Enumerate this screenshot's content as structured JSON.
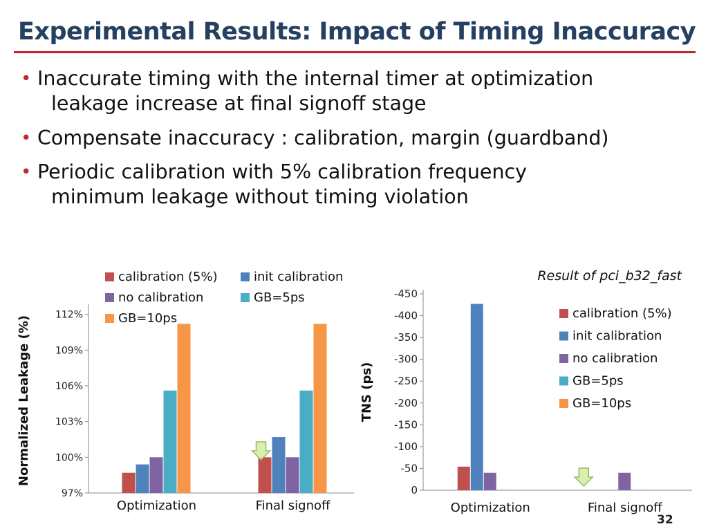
{
  "slide": {
    "title": "Experimental Results: Impact of Timing Inaccuracy",
    "bullets": [
      {
        "line1": "Inaccurate timing with the internal timer at optimization",
        "line2": "leakage increase at final signoff stage"
      },
      {
        "line1": "Compensate inaccuracy : calibration, margin (guardband)",
        "line2": ""
      },
      {
        "line1": "Periodic calibration with 5% calibration frequency",
        "line2": "minimum leakage without timing violation"
      }
    ],
    "page_number": "32"
  },
  "chart_data": [
    {
      "type": "bar",
      "title": "",
      "xlabel": "",
      "ylabel": "Normalized Leakage (%)",
      "categories": [
        "Optimization",
        "Final signoff"
      ],
      "ylim": [
        97,
        112.5
      ],
      "yticks": [
        "97%",
        "100%",
        "103%",
        "106%",
        "109%",
        "112%"
      ],
      "ytick_values": [
        97,
        100,
        103,
        106,
        109,
        112
      ],
      "legend_position": "top",
      "grid": false,
      "series": [
        {
          "name": "calibration (5%)",
          "color": "#c0504d",
          "values": [
            98.7,
            100.0
          ]
        },
        {
          "name": "init calibration",
          "color": "#4f81bd",
          "values": [
            99.4,
            101.7
          ]
        },
        {
          "name": "no calibration",
          "color": "#8064a2",
          "values": [
            100.0,
            100.0
          ]
        },
        {
          "name": "GB=5ps",
          "color": "#4bacc6",
          "values": [
            105.6,
            105.6
          ]
        },
        {
          "name": "GB=10ps",
          "color": "#f79646",
          "values": [
            111.2,
            111.2
          ]
        }
      ],
      "annotation_arrow_category": "Final signoff"
    },
    {
      "type": "bar",
      "title": "Result of pci_b32_fast",
      "xlabel": "",
      "ylabel": "TNS (ps)",
      "categories": [
        "Optimization",
        "Final signoff"
      ],
      "ylim": [
        0,
        -450
      ],
      "yticks": [
        "0",
        "-50",
        "-100",
        "-150",
        "-200",
        "-250",
        "-300",
        "-350",
        "-400",
        "-450"
      ],
      "ytick_values": [
        0,
        -50,
        -100,
        -150,
        -200,
        -250,
        -300,
        -350,
        -400,
        -450
      ],
      "legend_position": "right",
      "grid": false,
      "series": [
        {
          "name": "calibration (5%)",
          "color": "#c0504d",
          "values": [
            -54,
            0
          ]
        },
        {
          "name": "init calibration",
          "color": "#4f81bd",
          "values": [
            -427,
            0
          ]
        },
        {
          "name": "no calibration",
          "color": "#8064a2",
          "values": [
            -40,
            -40
          ]
        },
        {
          "name": "GB=5ps",
          "color": "#4bacc6",
          "values": [
            -1,
            -1
          ]
        },
        {
          "name": "GB=10ps",
          "color": "#f79646",
          "values": [
            0,
            0
          ]
        }
      ],
      "annotation_arrow_category": "Final signoff"
    }
  ]
}
